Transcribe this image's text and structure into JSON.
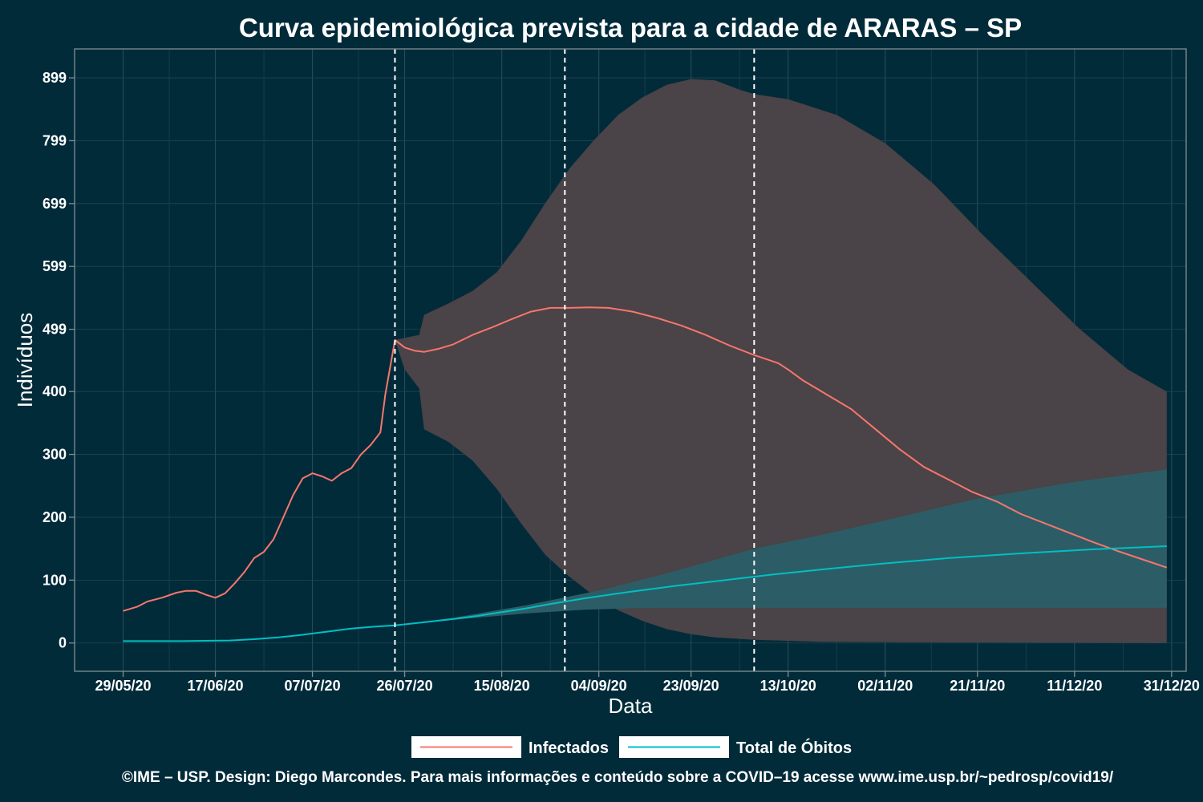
{
  "chart_data": {
    "type": "line",
    "title": "Curva epidemiológica prevista para a cidade de ARARAS – SP",
    "xlabel": "Data",
    "ylabel": "Indivíduos",
    "x_tick_labels": [
      "29/05/20",
      "17/06/20",
      "07/07/20",
      "26/07/20",
      "15/08/20",
      "04/09/20",
      "23/09/20",
      "13/10/20",
      "02/11/20",
      "21/11/20",
      "11/12/20",
      "31/12/20"
    ],
    "x_tick_dates": [
      "2020-05-29",
      "2020-06-17",
      "2020-07-07",
      "2020-07-26",
      "2020-08-15",
      "2020-09-04",
      "2020-09-23",
      "2020-10-13",
      "2020-11-02",
      "2020-11-21",
      "2020-12-11",
      "2020-12-31"
    ],
    "y_tick_labels": [
      "0",
      "100",
      "200",
      "300",
      "400",
      "499",
      "599",
      "699",
      "799",
      "899"
    ],
    "y_tick_values": [
      0,
      100,
      200,
      300,
      400,
      499,
      599,
      699,
      799,
      899
    ],
    "xlim": [
      "2020-05-19",
      "2021-01-03"
    ],
    "ylim": [
      -45,
      945
    ],
    "grid": true,
    "legend_position": "bottom",
    "vlines": [
      "2020-07-24",
      "2020-08-28",
      "2020-10-06"
    ],
    "series": [
      {
        "name": "Infectados",
        "color": "#f8766d",
        "points": [
          [
            "2020-05-29",
            51
          ],
          [
            "2020-06-01",
            58
          ],
          [
            "2020-06-03",
            66
          ],
          [
            "2020-06-06",
            72
          ],
          [
            "2020-06-09",
            80
          ],
          [
            "2020-06-11",
            83
          ],
          [
            "2020-06-13",
            83
          ],
          [
            "2020-06-15",
            77
          ],
          [
            "2020-06-17",
            72
          ],
          [
            "2020-06-19",
            79
          ],
          [
            "2020-06-21",
            95
          ],
          [
            "2020-06-23",
            113
          ],
          [
            "2020-06-25",
            135
          ],
          [
            "2020-06-27",
            145
          ],
          [
            "2020-06-29",
            165
          ],
          [
            "2020-07-01",
            200
          ],
          [
            "2020-07-03",
            235
          ],
          [
            "2020-07-05",
            262
          ],
          [
            "2020-07-07",
            270
          ],
          [
            "2020-07-09",
            265
          ],
          [
            "2020-07-11",
            258
          ],
          [
            "2020-07-13",
            270
          ],
          [
            "2020-07-15",
            278
          ],
          [
            "2020-07-17",
            300
          ],
          [
            "2020-07-19",
            315
          ],
          [
            "2020-07-21",
            335
          ],
          [
            "2020-07-22",
            395
          ],
          [
            "2020-07-24",
            482
          ],
          [
            "2020-07-26",
            470
          ],
          [
            "2020-07-28",
            465
          ],
          [
            "2020-07-30",
            463
          ],
          [
            "2020-08-02",
            468
          ],
          [
            "2020-08-05",
            475
          ],
          [
            "2020-08-09",
            490
          ],
          [
            "2020-08-13",
            502
          ],
          [
            "2020-08-17",
            515
          ],
          [
            "2020-08-21",
            527
          ],
          [
            "2020-08-25",
            533
          ],
          [
            "2020-08-29",
            533
          ],
          [
            "2020-09-02",
            534
          ],
          [
            "2020-09-06",
            533
          ],
          [
            "2020-09-11",
            527
          ],
          [
            "2020-09-16",
            517
          ],
          [
            "2020-09-21",
            505
          ],
          [
            "2020-09-26",
            490
          ],
          [
            "2020-10-01",
            473
          ],
          [
            "2020-10-06",
            458
          ],
          [
            "2020-10-11",
            445
          ],
          [
            "2020-10-13",
            435
          ],
          [
            "2020-10-16",
            418
          ],
          [
            "2020-10-21",
            395
          ],
          [
            "2020-10-26",
            372
          ],
          [
            "2020-10-31",
            340
          ],
          [
            "2020-11-05",
            308
          ],
          [
            "2020-11-10",
            280
          ],
          [
            "2020-11-15",
            260
          ],
          [
            "2020-11-20",
            240
          ],
          [
            "2020-11-25",
            225
          ],
          [
            "2020-11-30",
            205
          ],
          [
            "2020-12-05",
            190
          ],
          [
            "2020-12-10",
            175
          ],
          [
            "2020-12-15",
            160
          ],
          [
            "2020-12-20",
            146
          ],
          [
            "2020-12-25",
            133
          ],
          [
            "2020-12-30",
            120
          ]
        ]
      },
      {
        "name": "Total de Óbitos",
        "color": "#00bfc4",
        "points": [
          [
            "2020-05-29",
            3
          ],
          [
            "2020-06-10",
            3
          ],
          [
            "2020-06-20",
            4
          ],
          [
            "2020-06-25",
            6
          ],
          [
            "2020-06-30",
            9
          ],
          [
            "2020-07-05",
            13
          ],
          [
            "2020-07-10",
            18
          ],
          [
            "2020-07-15",
            23
          ],
          [
            "2020-07-20",
            26
          ],
          [
            "2020-07-24",
            28
          ],
          [
            "2020-07-30",
            33
          ],
          [
            "2020-08-05",
            38
          ],
          [
            "2020-08-10",
            43
          ],
          [
            "2020-08-15",
            49
          ],
          [
            "2020-08-20",
            55
          ],
          [
            "2020-08-25",
            62
          ],
          [
            "2020-09-01",
            71
          ],
          [
            "2020-09-10",
            81
          ],
          [
            "2020-09-20",
            91
          ],
          [
            "2020-10-01",
            101
          ],
          [
            "2020-10-10",
            109
          ],
          [
            "2020-10-20",
            117
          ],
          [
            "2020-11-01",
            126
          ],
          [
            "2020-11-15",
            135
          ],
          [
            "2020-12-01",
            143
          ],
          [
            "2020-12-15",
            149
          ],
          [
            "2020-12-30",
            154
          ]
        ]
      }
    ],
    "bands": [
      {
        "series": "Infectados",
        "color": "#4a4347",
        "upper": [
          [
            "2020-07-24",
            482
          ],
          [
            "2020-07-29",
            490
          ],
          [
            "2020-07-30",
            522
          ],
          [
            "2020-08-04",
            540
          ],
          [
            "2020-08-09",
            560
          ],
          [
            "2020-08-14",
            590
          ],
          [
            "2020-08-19",
            640
          ],
          [
            "2020-08-24",
            700
          ],
          [
            "2020-08-29",
            755
          ],
          [
            "2020-09-03",
            800
          ],
          [
            "2020-09-08",
            840
          ],
          [
            "2020-09-13",
            868
          ],
          [
            "2020-09-18",
            888
          ],
          [
            "2020-09-23",
            897
          ],
          [
            "2020-09-28",
            895
          ],
          [
            "2020-10-03",
            880
          ],
          [
            "2020-10-06",
            873
          ],
          [
            "2020-10-13",
            865
          ],
          [
            "2020-10-23",
            840
          ],
          [
            "2020-11-02",
            795
          ],
          [
            "2020-11-12",
            730
          ],
          [
            "2020-11-22",
            650
          ],
          [
            "2020-12-02",
            575
          ],
          [
            "2020-12-12",
            500
          ],
          [
            "2020-12-22",
            435
          ],
          [
            "2020-12-30",
            400
          ]
        ],
        "lower": [
          [
            "2020-07-24",
            482
          ],
          [
            "2020-07-26",
            435
          ],
          [
            "2020-07-29",
            405
          ],
          [
            "2020-07-30",
            340
          ],
          [
            "2020-08-04",
            320
          ],
          [
            "2020-08-09",
            290
          ],
          [
            "2020-08-14",
            245
          ],
          [
            "2020-08-19",
            190
          ],
          [
            "2020-08-24",
            140
          ],
          [
            "2020-08-29",
            105
          ],
          [
            "2020-09-03",
            75
          ],
          [
            "2020-09-08",
            52
          ],
          [
            "2020-09-13",
            35
          ],
          [
            "2020-09-18",
            22
          ],
          [
            "2020-09-23",
            14
          ],
          [
            "2020-09-28",
            9
          ],
          [
            "2020-10-06",
            5
          ],
          [
            "2020-10-20",
            2
          ],
          [
            "2020-11-10",
            1
          ],
          [
            "2020-12-30",
            0
          ]
        ]
      },
      {
        "series": "Total de Óbitos",
        "color": "#2c5d66",
        "upper": [
          [
            "2020-07-24",
            28
          ],
          [
            "2020-08-05",
            40
          ],
          [
            "2020-08-20",
            60
          ],
          [
            "2020-09-05",
            85
          ],
          [
            "2020-09-20",
            115
          ],
          [
            "2020-10-06",
            150
          ],
          [
            "2020-10-20",
            172
          ],
          [
            "2020-11-02",
            195
          ],
          [
            "2020-11-20",
            228
          ],
          [
            "2020-12-10",
            255
          ],
          [
            "2020-12-30",
            276
          ]
        ],
        "lower": [
          [
            "2020-07-24",
            28
          ],
          [
            "2020-08-05",
            37
          ],
          [
            "2020-08-20",
            47
          ],
          [
            "2020-09-01",
            53
          ],
          [
            "2020-09-15",
            56
          ],
          [
            "2020-12-30",
            56
          ]
        ]
      }
    ]
  },
  "caption": "©IME – USP. Design: Diego Marcondes. Para mais informações e conteúdo sobre a COVID–19 acesse www.ime.usp.br/~pedrosp/covid19/"
}
